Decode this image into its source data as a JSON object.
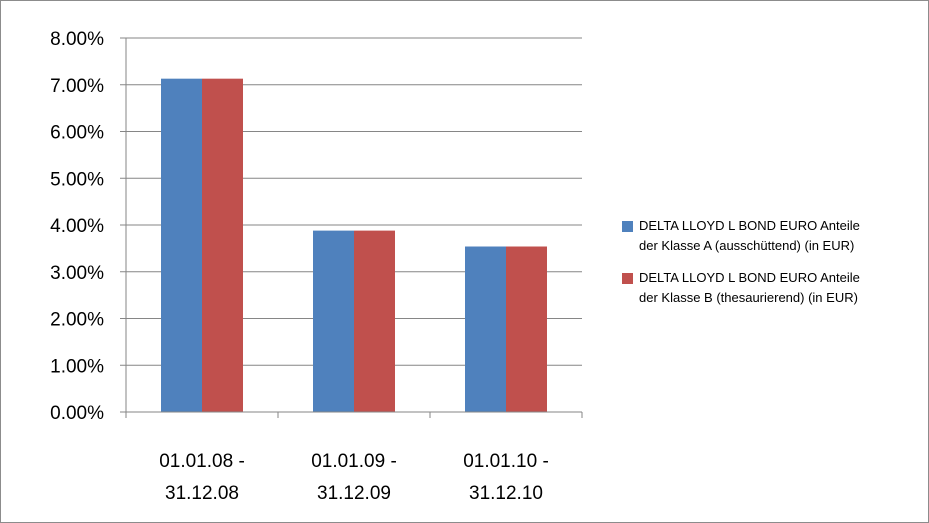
{
  "chart_data": {
    "type": "bar",
    "categories": [
      [
        "01.01.08 -",
        "31.12.08"
      ],
      [
        "01.01.09 -",
        "31.12.09"
      ],
      [
        "01.01.10 -",
        "31.12.10"
      ]
    ],
    "series": [
      {
        "name": [
          "DELTA LLOYD L BOND EURO Anteile",
          "der Klasse A (ausschüttend) (in EUR)"
        ],
        "color": "#4f81bd",
        "values": [
          7.13,
          3.88,
          3.54
        ]
      },
      {
        "name": [
          "DELTA LLOYD L BOND EURO Anteile",
          "der Klasse B (thesaurierend)  (in EUR)"
        ],
        "color": "#c0504d",
        "values": [
          7.13,
          3.88,
          3.54
        ]
      }
    ],
    "ylim": [
      0,
      8
    ],
    "yticks": [
      "0.00%",
      "1.00%",
      "2.00%",
      "3.00%",
      "4.00%",
      "5.00%",
      "6.00%",
      "7.00%",
      "8.00%"
    ],
    "grid": true,
    "legend_position": "right",
    "gridline_color": "#868686",
    "axis_color": "#868686"
  }
}
